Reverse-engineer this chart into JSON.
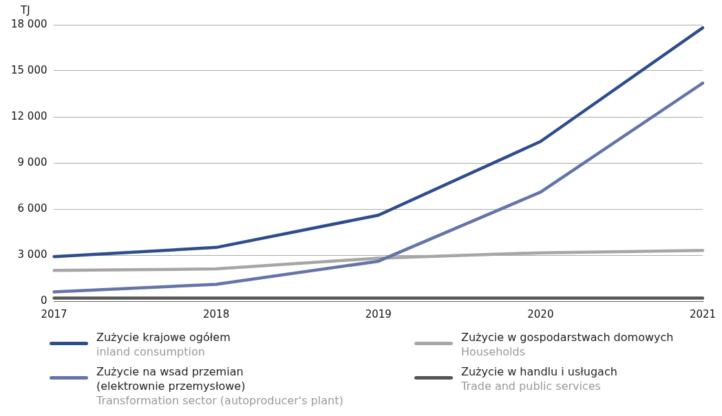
{
  "chart_data": {
    "type": "line",
    "ylabel": "TJ",
    "categories": [
      "2017",
      "2018",
      "2019",
      "2020",
      "2021"
    ],
    "ylim": [
      0,
      18000
    ],
    "yticks": [
      {
        "value": 0,
        "label": "0"
      },
      {
        "value": 3000,
        "label": "3 000"
      },
      {
        "value": 6000,
        "label": "6 000"
      },
      {
        "value": 9000,
        "label": "9 000"
      },
      {
        "value": 12000,
        "label": "12 000"
      },
      {
        "value": 15000,
        "label": "15 000"
      },
      {
        "value": 18000,
        "label": "18 000"
      }
    ],
    "grid": "y",
    "legend": "bottom",
    "marker": "none",
    "line_style": "solid",
    "series": [
      {
        "name": "Zużycie krajowe ogółem\ninland consumption",
        "color": "#2e4d8c",
        "values": [
          2900,
          3500,
          5600,
          10400,
          17800
        ]
      },
      {
        "name": "Zużycie na wsad przemian\n(elektrownie przemysłowe)\nTransformation sector (autoproducer's plant)",
        "color": "#6474a8",
        "values": [
          600,
          1100,
          2600,
          7100,
          14200
        ]
      },
      {
        "name": "Zużycie w gospodarstwach domowych\nHouseholds",
        "color": "#a6a6a6",
        "values": [
          2000,
          2100,
          2800,
          3150,
          3300
        ]
      },
      {
        "name": "Zużycie w handlu i usługach\nTrade and public services",
        "color": "#555555",
        "values": [
          200,
          200,
          200,
          200,
          200
        ]
      }
    ]
  }
}
